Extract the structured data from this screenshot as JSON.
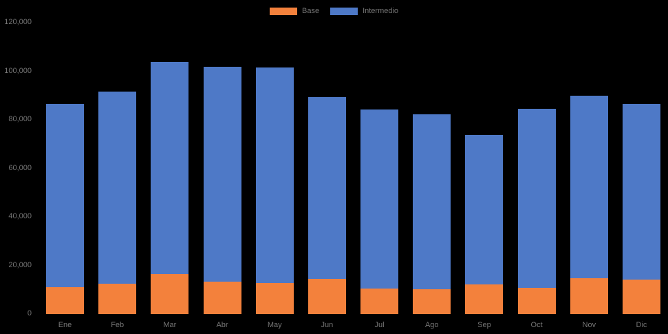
{
  "chart_data": {
    "type": "bar",
    "stacked": true,
    "title": "",
    "xlabel": "",
    "ylabel": "",
    "categories": [
      "Ene",
      "Feb",
      "Mar",
      "Abr",
      "May",
      "Jun",
      "Jul",
      "Ago",
      "Sep",
      "Oct",
      "Nov",
      "Dic"
    ],
    "series": [
      {
        "name": "Base",
        "color": "#F3813C",
        "values": [
          11000,
          12500,
          16500,
          13300,
          12800,
          14500,
          10500,
          10200,
          12200,
          10800,
          14800,
          14200
        ]
      },
      {
        "name": "Intermedio",
        "color": "#4E79C7",
        "values": [
          75500,
          79100,
          87300,
          88500,
          88800,
          74900,
          73800,
          72100,
          61600,
          73700,
          75100,
          72300
        ]
      }
    ],
    "totals": [
      86500,
      91600,
      103800,
      101800,
      101600,
      89400,
      84300,
      82300,
      73800,
      84500,
      89900,
      86500
    ],
    "ylim": [
      0,
      120000
    ],
    "ytick_step": 20000,
    "ytick_labels": [
      "0",
      "20,000",
      "40,000",
      "60,000",
      "80,000",
      "100,000",
      "120,000"
    ],
    "grid": false,
    "legend_position": "top-center"
  },
  "legend": {
    "items": [
      {
        "label": "Base",
        "color": "#F3813C"
      },
      {
        "label": "Intermedio",
        "color": "#4E79C7"
      }
    ]
  },
  "colors": {
    "background": "#000000",
    "axis_text": "#757575",
    "base_series": "#F3813C",
    "intermedio_series": "#4E79C7"
  }
}
